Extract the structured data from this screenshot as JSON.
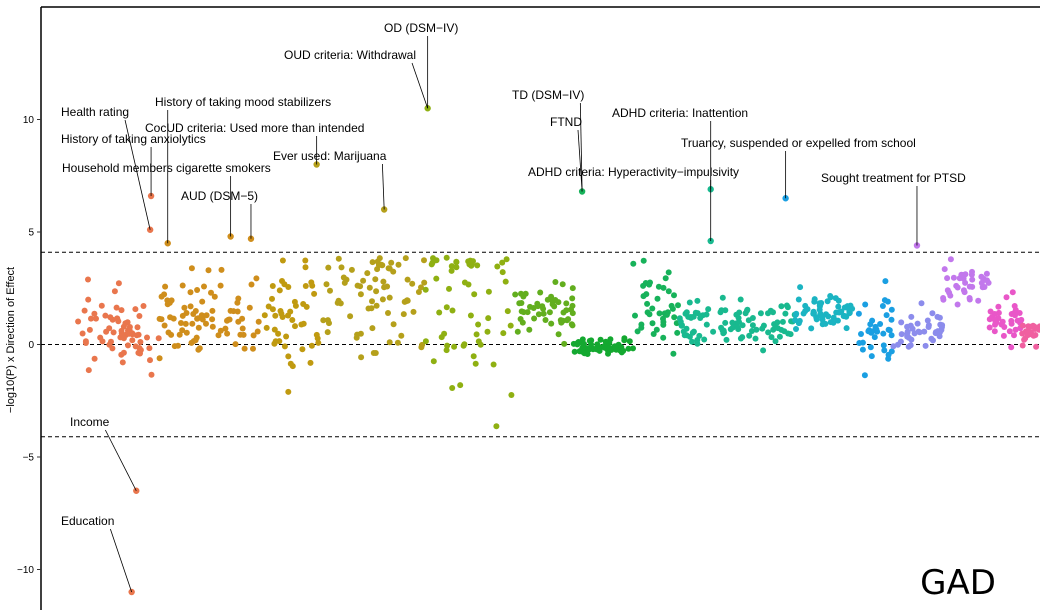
{
  "chart_data": {
    "type": "scatter",
    "title": "",
    "xlabel": "",
    "ylabel": "−log10(P) x Direction of Effect",
    "panel_label": "GAD",
    "ylim": [
      -11.8,
      15.0
    ],
    "yticks": [
      -10,
      -5,
      0,
      5,
      10
    ],
    "ytick_labels": [
      "−10",
      "−5",
      "0",
      "5",
      "10"
    ],
    "xlim": [
      0,
      1080
    ],
    "grid": false,
    "legend": "none",
    "reference_lines": [
      {
        "y": 0,
        "style": "dashed"
      },
      {
        "y": 4.1,
        "style": "dashed"
      },
      {
        "y": -4.1,
        "style": "dashed"
      }
    ],
    "groups": [
      {
        "color": "#E9764D",
        "x_start": 40,
        "x_end": 128,
        "center": 0.6,
        "spread": 1.4,
        "n": 68
      },
      {
        "color": "#CF8E1C",
        "x_start": 128,
        "x_end": 240,
        "center": 1.2,
        "spread": 1.6,
        "n": 82
      },
      {
        "color": "#C09A10",
        "x_start": 240,
        "x_end": 300,
        "center": 1.0,
        "spread": 2.4,
        "n": 48
      },
      {
        "color": "#B5A01B",
        "x_start": 300,
        "x_end": 415,
        "center": 2.0,
        "spread": 2.6,
        "n": 74
      },
      {
        "color": "#8FB012",
        "x_start": 415,
        "x_end": 510,
        "center": 2.5,
        "spread": 4.5,
        "n": 58
      },
      {
        "color": "#62AE1E",
        "x_start": 510,
        "x_end": 575,
        "center": 1.6,
        "spread": 1.1,
        "n": 52
      },
      {
        "color": "#14A830",
        "x_start": 575,
        "x_end": 640,
        "center": -0.1,
        "spread": 0.35,
        "n": 58
      },
      {
        "color": "#17B25A",
        "x_start": 640,
        "x_end": 690,
        "center": 1.8,
        "spread": 1.8,
        "n": 42
      },
      {
        "color": "#19B98F",
        "x_start": 690,
        "x_end": 815,
        "center": 1.0,
        "spread": 0.9,
        "n": 96
      },
      {
        "color": "#1BB4C2",
        "x_start": 815,
        "x_end": 880,
        "center": 1.5,
        "spread": 0.9,
        "n": 58
      },
      {
        "color": "#1A9FE2",
        "x_start": 880,
        "x_end": 920,
        "center": 1.0,
        "spread": 1.4,
        "n": 36
      },
      {
        "color": "#8C8CEC",
        "x_start": 920,
        "x_end": 975,
        "center": 0.6,
        "spread": 0.8,
        "n": 40
      },
      {
        "color": "#C278EC",
        "x_start": 975,
        "x_end": 1025,
        "center": 2.6,
        "spread": 0.8,
        "n": 38
      },
      {
        "color": "#E957C8",
        "x_start": 1025,
        "x_end": 1060,
        "center": 1.2,
        "spread": 1.0,
        "n": 36
      },
      {
        "color": "#F060A0",
        "x_start": 1060,
        "x_end": 1080,
        "center": 0.5,
        "spread": 0.35,
        "n": 22
      }
    ],
    "highlighted_points": [
      {
        "x": 103,
        "y": -6.5,
        "color": "#E9764D"
      },
      {
        "x": 98,
        "y": -11.0,
        "color": "#E9764D"
      },
      {
        "x": 119,
        "y": 6.6,
        "color": "#E9764D"
      },
      {
        "x": 118,
        "y": 5.1,
        "color": "#E9764D"
      },
      {
        "x": 137,
        "y": 4.5,
        "color": "#CF8E1C"
      },
      {
        "x": 205,
        "y": 4.8,
        "color": "#CF8E1C"
      },
      {
        "x": 227,
        "y": 4.7,
        "color": "#CF8E1C"
      },
      {
        "x": 298,
        "y": 8.0,
        "color": "#B5A01B"
      },
      {
        "x": 371,
        "y": 6.0,
        "color": "#B5A01B"
      },
      {
        "x": 418,
        "y": 10.5,
        "color": "#8FB012"
      },
      {
        "x": 585,
        "y": 6.8,
        "color": "#17B25A"
      },
      {
        "x": 724,
        "y": 6.9,
        "color": "#19B98F"
      },
      {
        "x": 724,
        "y": 4.6,
        "color": "#19B98F"
      },
      {
        "x": 805,
        "y": 6.5,
        "color": "#1A9FE2"
      },
      {
        "x": 947,
        "y": 4.4,
        "color": "#C278EC"
      }
    ],
    "annotations": [
      {
        "label": "OD (DSM−IV)",
        "point": {
          "x": 418,
          "y": 10.5
        }
      },
      {
        "label": "OUD criteria: Withdrawal",
        "point": {
          "x": 418,
          "y": 10.5
        }
      },
      {
        "label": "Health rating",
        "point": {
          "x": 118,
          "y": 5.1
        }
      },
      {
        "label": "History of taking mood stabilizers",
        "point": {
          "x": 137,
          "y": 4.5
        }
      },
      {
        "label": "History of taking anxiolytics",
        "point": {
          "x": 119,
          "y": 6.6
        }
      },
      {
        "label": "CocUD criteria: Used more than intended",
        "point": {
          "x": 298,
          "y": 8.0
        }
      },
      {
        "label": "Household members cigarette smokers",
        "point": {
          "x": 205,
          "y": 4.8
        }
      },
      {
        "label": "Ever used: Marijuana",
        "point": {
          "x": 371,
          "y": 6.0
        }
      },
      {
        "label": "AUD (DSM−5)",
        "point": {
          "x": 227,
          "y": 4.7
        }
      },
      {
        "label": "TD (DSM−IV)",
        "point": {
          "x": 585,
          "y": 6.8
        }
      },
      {
        "label": "FTND",
        "point": {
          "x": 585,
          "y": 6.8
        }
      },
      {
        "label": "ADHD criteria: Hyperactivity−impulsivity",
        "point": {
          "x": 724,
          "y": 6.9
        }
      },
      {
        "label": "ADHD criteria: Inattention",
        "point": {
          "x": 724,
          "y": 4.6
        }
      },
      {
        "label": "Truancy, suspended or expelled from school",
        "point": {
          "x": 805,
          "y": 6.5
        }
      },
      {
        "label": "Sought treatment for PTSD",
        "point": {
          "x": 947,
          "y": 4.4
        }
      },
      {
        "label": "Income",
        "point": {
          "x": 103,
          "y": -6.5
        }
      },
      {
        "label": "Education",
        "point": {
          "x": 98,
          "y": -11.0
        }
      }
    ]
  }
}
